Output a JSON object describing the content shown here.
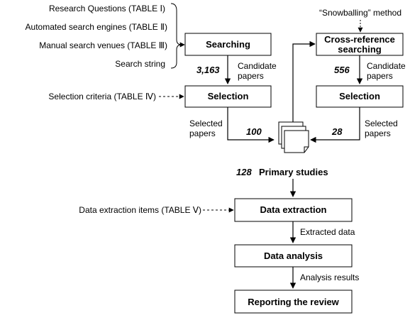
{
  "inputs": {
    "research_questions": "Research Questions (TABLE Ⅰ)",
    "automated_search_engines": "Automated search engines (TABLE Ⅱ)",
    "manual_search_venues": "Manual search venues (TABLE Ⅲ)",
    "search_string": "Search string",
    "selection_criteria": "Selection criteria (TABLE Ⅳ)",
    "data_extraction_items": "Data extraction items (TABLE Ⅴ)",
    "snowballing_method": "“Snowballing” method"
  },
  "nodes": {
    "searching": "Searching",
    "selection_left": "Selection",
    "cross_reference_line1": "Cross-reference",
    "cross_reference_line2": "searching",
    "selection_right": "Selection",
    "data_extraction": "Data extraction",
    "data_analysis": "Data analysis",
    "reporting": "Reporting the review"
  },
  "edges": {
    "candidate_left_line1": "Candidate",
    "candidate_left_line2": "papers",
    "candidate_right_line1": "Candidate",
    "candidate_right_line2": "papers",
    "selected_left_line1": "Selected",
    "selected_left_line2": "papers",
    "selected_right_line1": "Selected",
    "selected_right_line2": "papers",
    "extracted_data": "Extracted data",
    "analysis_results": "Analysis results"
  },
  "counts": {
    "candidate_left": "3,163",
    "candidate_right": "556",
    "selected_left": "100",
    "selected_right": "28",
    "primary": "128"
  },
  "primary_studies_label": "Primary studies"
}
